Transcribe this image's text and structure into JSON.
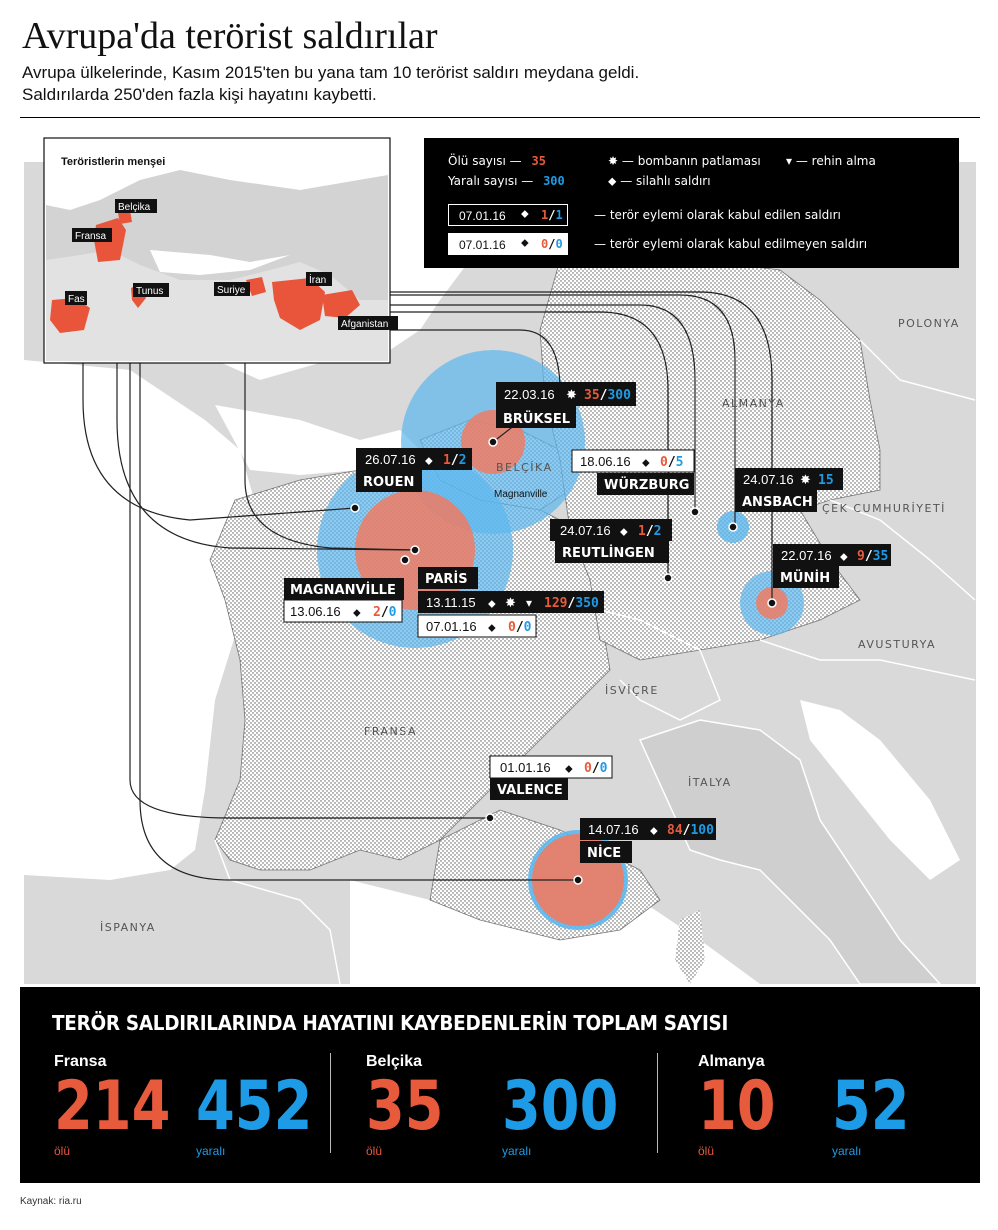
{
  "title": "Avrupa'da terörist saldırılar",
  "subtitle_line1": "Avrupa ülkelerinde, Kasım 2015'ten bu yana tam 10 terörist saldırı meydana geldi.",
  "subtitle_line2": "Saldırılarda 250'den fazla kişi hayatını kaybetti.",
  "colors": {
    "dead": "#e85a3c",
    "wounded": "#1e9be6",
    "origin": "#e8553a"
  },
  "inset": {
    "title": "Teröristlerin menşei",
    "origins": [
      "Belçika",
      "Fransa",
      "Fas",
      "Tunus",
      "Suriye",
      "İran",
      "Afganistan"
    ]
  },
  "legend": {
    "dead_label": "Ölü sayısı —",
    "dead_value": "35",
    "wounded_label": "Yaralı sayısı —",
    "wounded_value": "300",
    "bomb_label": "— bombanın patlaması",
    "bomb_icon": "explosion-icon",
    "gun_label": "— silahlı saldırı",
    "gun_icon": "gun-icon",
    "hostage_label": "— rehin alma",
    "hostage_icon": "hostage-icon",
    "sample_date": "07.01.16",
    "sample_dead": "1",
    "sample_wounded": "1",
    "sample2_dead": "0",
    "sample2_wounded": "0",
    "recognized_label": "— terör eylemi olarak kabul edilen saldırı",
    "unrecognized_label": "— terör eylemi olarak kabul edilmeyen saldırı"
  },
  "countries": [
    "POLONYA",
    "ALMANYA",
    "BELÇİKA",
    "ÇEK CUMHURİYETİ",
    "AVUSTURYA",
    "İSVİÇRE",
    "FRANSA",
    "İTALYA",
    "İSPANYA"
  ],
  "map_note": "Magnanville",
  "attacks": [
    {
      "city": "BRÜKSEL",
      "date": "22.03.16",
      "type": "bomb",
      "dead": "35",
      "wounded": "300",
      "recognized": true
    },
    {
      "city": "ROUEN",
      "date": "26.07.16",
      "type": "gun",
      "dead": "1",
      "wounded": "2",
      "recognized": true
    },
    {
      "city": "WÜRZBURG",
      "date": "18.06.16",
      "type": "gun",
      "dead": "0",
      "wounded": "5",
      "recognized": false
    },
    {
      "city": "ANSBACH",
      "date": "24.07.16",
      "type": "bomb",
      "dead": "",
      "wounded": "15",
      "recognized": true
    },
    {
      "city": "REUTLİNGEN",
      "date": "24.07.16",
      "type": "gun",
      "dead": "1",
      "wounded": "2",
      "recognized": true
    },
    {
      "city": "MÜNİH",
      "date": "22.07.16",
      "type": "gun",
      "dead": "9",
      "wounded": "35",
      "recognized": true
    },
    {
      "city": "MAGNANVİLLE",
      "date": "13.06.16",
      "type": "gun",
      "dead": "2",
      "wounded": "0",
      "recognized": false
    },
    {
      "city": "PARİS",
      "date": "13.11.15",
      "type": "gun+bomb+hostage",
      "dead": "129",
      "wounded": "350",
      "recognized": true
    },
    {
      "city": "PARİS",
      "date": "07.01.16",
      "type": "gun",
      "dead": "0",
      "wounded": "0",
      "recognized": false
    },
    {
      "city": "VALENCE",
      "date": "01.01.16",
      "type": "gun",
      "dead": "0",
      "wounded": "0",
      "recognized": false
    },
    {
      "city": "NİCE",
      "date": "14.07.16",
      "type": "gun",
      "dead": "84",
      "wounded": "100",
      "recognized": true
    }
  ],
  "stats": {
    "title": "TERÖR SALDIRILARINDA HAYATINI KAYBEDENLERİN TOPLAM SAYISI",
    "dead_label": "ölü",
    "wounded_label": "yaralı",
    "items": [
      {
        "country": "Fransa",
        "dead": "214",
        "wounded": "452"
      },
      {
        "country": "Belçika",
        "dead": "35",
        "wounded": "300"
      },
      {
        "country": "Almanya",
        "dead": "10",
        "wounded": "52"
      }
    ]
  },
  "source": "Kaynak: ria.ru"
}
